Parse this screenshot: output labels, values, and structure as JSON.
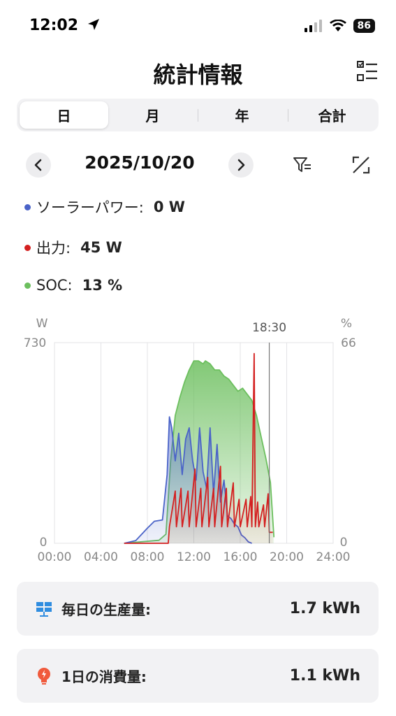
{
  "status": {
    "time": "12:02",
    "battery": "86"
  },
  "header": {
    "title": "統計情報"
  },
  "tabs": [
    {
      "label": "日",
      "active": true
    },
    {
      "label": "月",
      "active": false
    },
    {
      "label": "年",
      "active": false
    },
    {
      "label": "合計",
      "active": false
    }
  ],
  "date": {
    "label": "2025/10/20"
  },
  "live": [
    {
      "label": "ソーラーパワー:",
      "value": "0 W",
      "color": "#4a63c8"
    },
    {
      "label": "出力:",
      "value": "45 W",
      "color": "#d42020"
    },
    {
      "label": "SOC:",
      "value": "13 %",
      "color": "#6cbf5e"
    }
  ],
  "chart_data": {
    "type": "area",
    "y_left_unit": "W",
    "y_right_unit": "%",
    "y_left_max_label": "730",
    "y_left_min_label": "0",
    "y_right_max_label": "66",
    "y_right_min_label": "0",
    "ylim_left": [
      0,
      730
    ],
    "ylim_right": [
      0,
      66
    ],
    "xlim": [
      0,
      24
    ],
    "x_ticks": [
      "00:00",
      "04:00",
      "08:00",
      "12:00",
      "16:00",
      "20:00",
      "24:00"
    ],
    "cursor_label": "18:30",
    "cursor_x": 18.5,
    "grid": true,
    "series": [
      {
        "color": "#4a63c8",
        "axis": "left",
        "x": [
          6.0,
          7.0,
          8.0,
          8.6,
          9.3,
          9.7,
          9.9,
          10.1,
          10.4,
          10.7,
          11.0,
          11.3,
          11.6,
          11.9,
          12.2,
          12.5,
          12.8,
          13.1,
          13.4,
          13.7,
          14.0,
          14.3,
          14.6,
          14.9,
          15.2,
          15.5,
          15.8,
          16.1,
          16.4,
          16.7,
          17.0
        ],
        "y": [
          0,
          10,
          55,
          80,
          85,
          250,
          460,
          420,
          300,
          400,
          250,
          380,
          420,
          300,
          230,
          420,
          260,
          200,
          420,
          180,
          360,
          150,
          230,
          100,
          90,
          70,
          60,
          30,
          20,
          5,
          0
        ]
      },
      {
        "color": "#d42020",
        "axis": "left",
        "x": [
          6.0,
          9.8,
          9.9,
          10.4,
          10.5,
          10.9,
          11.0,
          11.5,
          11.6,
          12.1,
          12.2,
          12.6,
          12.7,
          13.2,
          13.3,
          13.7,
          13.8,
          14.3,
          14.4,
          14.8,
          14.9,
          15.4,
          15.5,
          15.9,
          16.0,
          16.5,
          16.6,
          16.9,
          17.0,
          17.2,
          17.3,
          17.5,
          17.6,
          18.0,
          18.1,
          18.4,
          18.5,
          18.8
        ],
        "y": [
          0,
          0,
          60,
          190,
          60,
          200,
          60,
          190,
          60,
          270,
          60,
          200,
          60,
          240,
          60,
          200,
          60,
          280,
          60,
          200,
          60,
          220,
          60,
          160,
          60,
          160,
          60,
          170,
          60,
          690,
          60,
          150,
          60,
          140,
          60,
          180,
          40,
          40
        ]
      },
      {
        "color": "#6cbf5e",
        "axis": "right",
        "x": [
          6.0,
          9.0,
          9.6,
          10.0,
          10.4,
          10.8,
          11.2,
          11.6,
          12.0,
          12.4,
          12.8,
          13.0,
          13.4,
          13.8,
          14.2,
          14.6,
          15.0,
          15.4,
          15.8,
          16.2,
          16.6,
          17.0,
          17.4,
          17.8,
          18.2,
          18.6,
          18.9
        ],
        "y": [
          0,
          1,
          3,
          27,
          42,
          48,
          53,
          57,
          60,
          60,
          59,
          60,
          59,
          57,
          57,
          55,
          54,
          52,
          50,
          51,
          49,
          47,
          42,
          35,
          28,
          20,
          2
        ]
      }
    ]
  },
  "cards": [
    {
      "label": "毎日の生産量:",
      "value": "1.7 kWh"
    },
    {
      "label": "1日の消費量:",
      "value": "1.1 kWh"
    }
  ]
}
